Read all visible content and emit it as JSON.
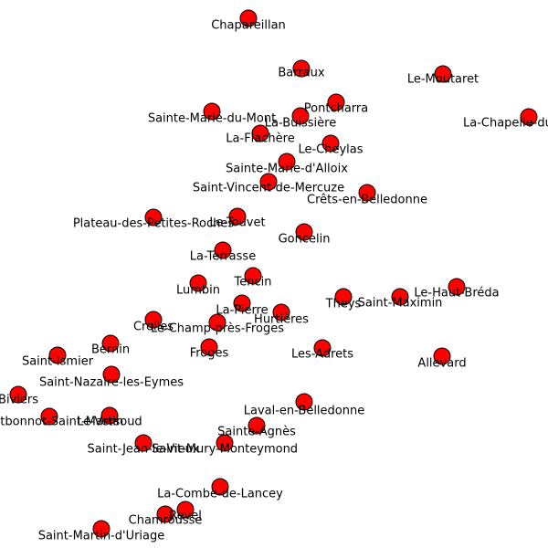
{
  "colors": {
    "node_fill": "#ff0000",
    "node_stroke": "#000000",
    "label": "#000000"
  },
  "nodes": [
    {
      "label": "Chapareillan"
    },
    {
      "label": "Barraux"
    },
    {
      "label": "Le-Moutaret"
    },
    {
      "label": "Pontcharra"
    },
    {
      "label": "La-Buissière"
    },
    {
      "label": "Sainte-Marie-du-Mont"
    },
    {
      "label": "La-Chapelle-du-Bard"
    },
    {
      "label": "La-Flachère"
    },
    {
      "label": "Le-Cheylas"
    },
    {
      "label": "Sainte-Marie-d'Alloix"
    },
    {
      "label": "Saint-Vincent-de-Mercuze"
    },
    {
      "label": "Crêts-en-Belledonne"
    },
    {
      "label": "Plateau-des-Petites-Roches"
    },
    {
      "label": "Le-Touvet"
    },
    {
      "label": "Goncelin"
    },
    {
      "label": "La-Terrasse"
    },
    {
      "label": "Tencin"
    },
    {
      "label": "Lumbin"
    },
    {
      "label": "Le-Haut-Bréda"
    },
    {
      "label": "Theys"
    },
    {
      "label": "Saint-Maximin"
    },
    {
      "label": "La-Pierre"
    },
    {
      "label": "Hurtières"
    },
    {
      "label": "Crolles"
    },
    {
      "label": "Le-Champ-près-Froges"
    },
    {
      "label": "Bernin"
    },
    {
      "label": "Froges"
    },
    {
      "label": "Les-Adrets"
    },
    {
      "label": "Allevard"
    },
    {
      "label": "Saint-Ismier"
    },
    {
      "label": "Saint-Nazaire-les-Eymes"
    },
    {
      "label": "Biviers"
    },
    {
      "label": "Laval-en-Belledonne"
    },
    {
      "label": "Montbonnot-Saint-Martin"
    },
    {
      "label": "Le-Versoud"
    },
    {
      "label": "Sainte-Agnès"
    },
    {
      "label": "Saint-Jean-le-Vieux"
    },
    {
      "label": "Saint-Mury-Monteymond"
    },
    {
      "label": "La-Combe-de-Lancey"
    },
    {
      "label": "Revel"
    },
    {
      "label": "Chamrousse"
    },
    {
      "label": "Saint-Martin-d'Uriage"
    }
  ]
}
